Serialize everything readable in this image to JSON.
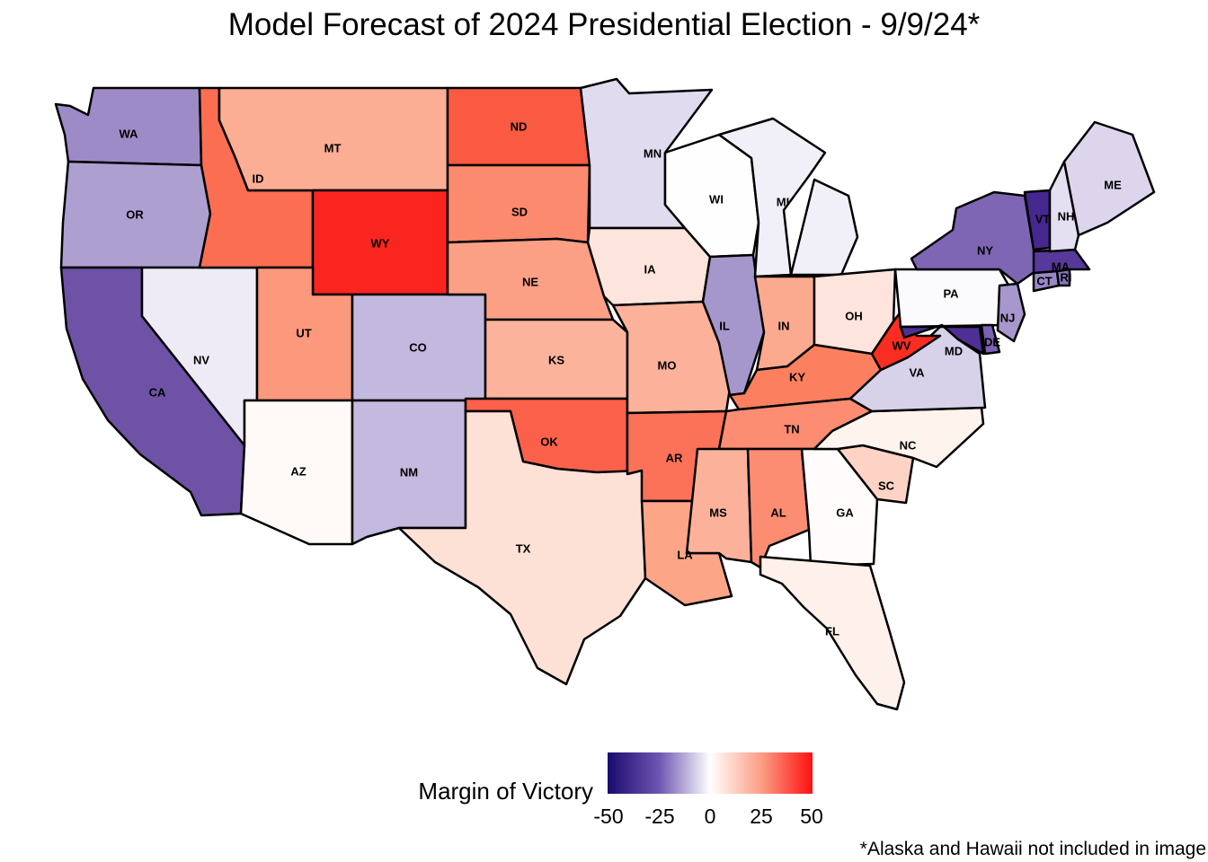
{
  "title": "Model Forecast of 2024 Presidential Election - 9/9/24*",
  "legend": {
    "title": "Margin of Victory",
    "ticks": [
      "-50",
      "-25",
      "0",
      "25",
      "50"
    ],
    "scale_colors": {
      "neg50": "#1a0a6e",
      "neg25": "#6d55b0",
      "zero": "#ffffff",
      "pos25": "#fc9d85",
      "pos50": "#ff1010"
    }
  },
  "footnote": "*Alaska and Hawaii not included in image",
  "states": [
    {
      "abbr": "WA",
      "color": "#9d8bc8"
    },
    {
      "abbr": "OR",
      "color": "#ae9fd1"
    },
    {
      "abbr": "CA",
      "color": "#6d52a6"
    },
    {
      "abbr": "NV",
      "color": "#eeebf6"
    },
    {
      "abbr": "ID",
      "color": "#fb6e52"
    },
    {
      "abbr": "MT",
      "color": "#fcae95"
    },
    {
      "abbr": "WY",
      "color": "#fb2520"
    },
    {
      "abbr": "UT",
      "color": "#fc987c"
    },
    {
      "abbr": "AZ",
      "color": "#fffaf8"
    },
    {
      "abbr": "CO",
      "color": "#c3b8de"
    },
    {
      "abbr": "NM",
      "color": "#c4b9de"
    },
    {
      "abbr": "ND",
      "color": "#fb5a42"
    },
    {
      "abbr": "SD",
      "color": "#fc8a6e"
    },
    {
      "abbr": "NE",
      "color": "#fca085"
    },
    {
      "abbr": "KS",
      "color": "#fcb39b"
    },
    {
      "abbr": "OK",
      "color": "#fb614a"
    },
    {
      "abbr": "TX",
      "color": "#fde0d6"
    },
    {
      "abbr": "MN",
      "color": "#e0dbef"
    },
    {
      "abbr": "IA",
      "color": "#fde5dd"
    },
    {
      "abbr": "MO",
      "color": "#fcb29a"
    },
    {
      "abbr": "AR",
      "color": "#fb7258"
    },
    {
      "abbr": "LA",
      "color": "#fca587"
    },
    {
      "abbr": "WI",
      "color": "#fefefe"
    },
    {
      "abbr": "IL",
      "color": "#a596cc"
    },
    {
      "abbr": "MI",
      "color": "#f1eff8"
    },
    {
      "abbr": "IN",
      "color": "#fcaa8f"
    },
    {
      "abbr": "OH",
      "color": "#fde4dc"
    },
    {
      "abbr": "KY",
      "color": "#fc805f"
    },
    {
      "abbr": "TN",
      "color": "#fc8d72"
    },
    {
      "abbr": "MS",
      "color": "#fcb29a"
    },
    {
      "abbr": "AL",
      "color": "#fc8d72"
    },
    {
      "abbr": "GA",
      "color": "#fffcfb"
    },
    {
      "abbr": "FL",
      "color": "#fef0ea"
    },
    {
      "abbr": "SC",
      "color": "#fcd3c4"
    },
    {
      "abbr": "NC",
      "color": "#fff3ee"
    },
    {
      "abbr": "VA",
      "color": "#d8d1ea"
    },
    {
      "abbr": "WV",
      "color": "#fa2d22"
    },
    {
      "abbr": "PA",
      "color": "#fbfbfd"
    },
    {
      "abbr": "NY",
      "color": "#7e66b4"
    },
    {
      "abbr": "NJ",
      "color": "#a797cc"
    },
    {
      "abbr": "MD",
      "color": "#4e2f93"
    },
    {
      "abbr": "DE",
      "color": "#7a61b2"
    },
    {
      "abbr": "CT",
      "color": "#9a88c6"
    },
    {
      "abbr": "RI",
      "color": "#8a75bd"
    },
    {
      "abbr": "MA",
      "color": "#56399a"
    },
    {
      "abbr": "VT",
      "color": "#44278f"
    },
    {
      "abbr": "NH",
      "color": "#e4dff1"
    },
    {
      "abbr": "ME",
      "color": "#dcd5ec"
    }
  ]
}
